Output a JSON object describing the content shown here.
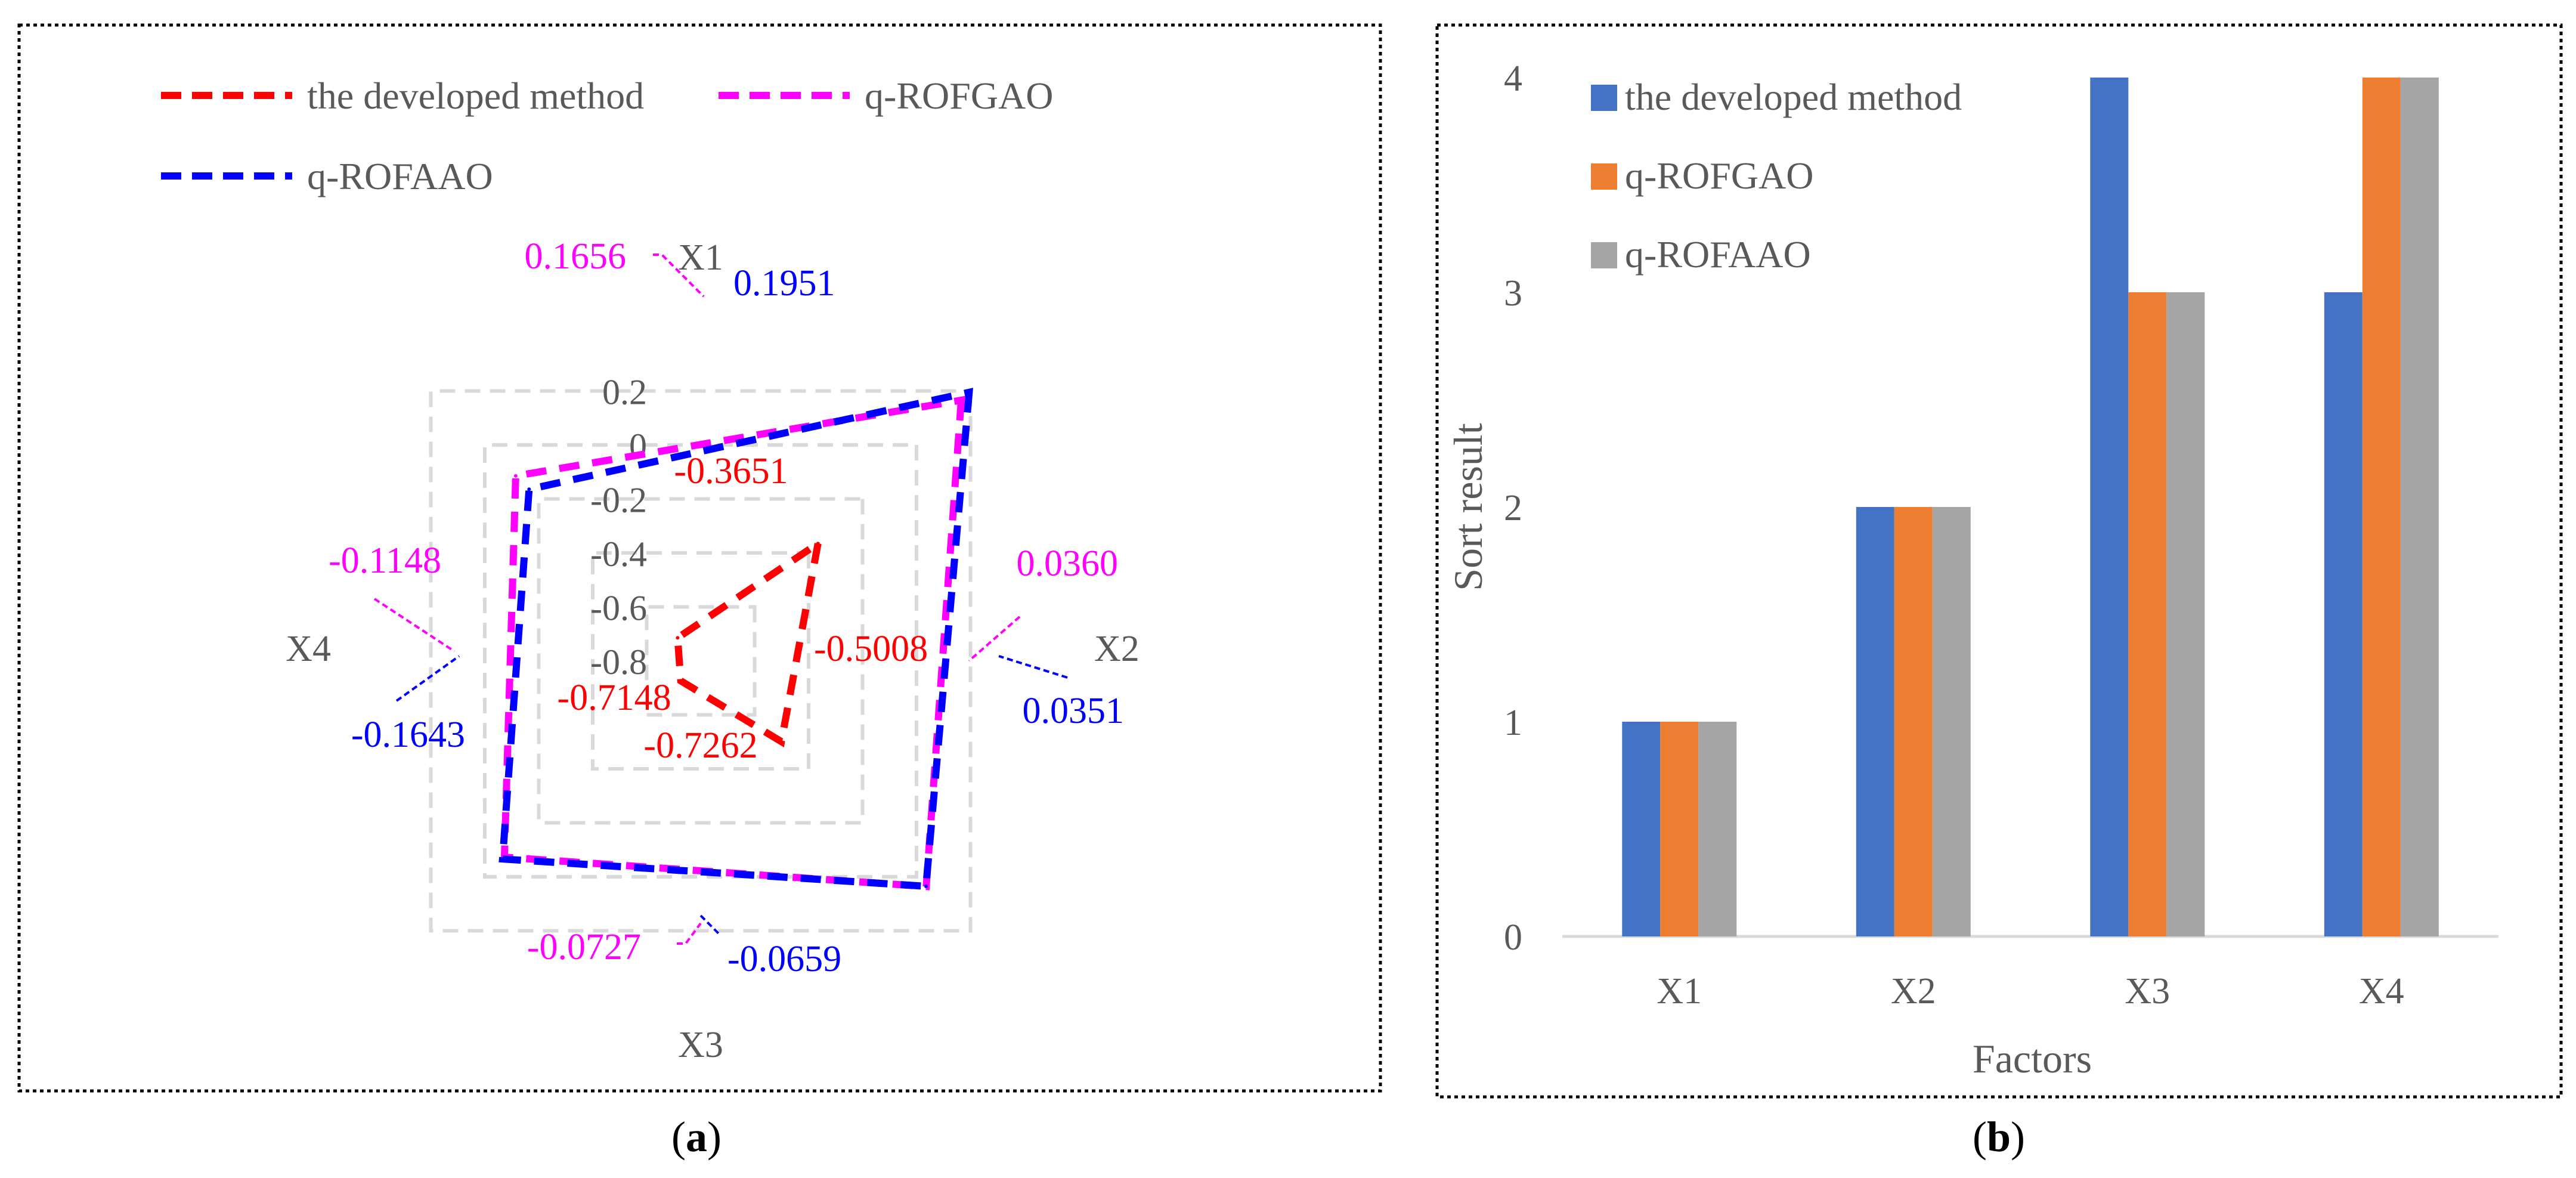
{
  "figure": {
    "panel_a_label": "a",
    "panel_b_label": "b"
  },
  "chart_data": [
    {
      "type": "radar",
      "panel": "a",
      "title": "",
      "axes": [
        "X1",
        "X2",
        "X3",
        "X4"
      ],
      "rlim": [
        -0.8,
        0.2
      ],
      "ticks": [
        -0.8,
        -0.6,
        -0.4,
        -0.2,
        0,
        0.2
      ],
      "tick_labels": [
        "-0.8",
        "-0.6",
        "-0.4",
        "-0.2",
        "0",
        "0.2"
      ],
      "legend_position": "top",
      "series": [
        {
          "name": "the developed method",
          "color": "#ff0000",
          "values": [
            -0.3651,
            -0.5008,
            -0.7262,
            -0.7148
          ],
          "labels": [
            "-0.3651",
            "-0.5008",
            "-0.7262",
            "-0.7148"
          ]
        },
        {
          "name": "q-ROFGAO",
          "color": "#ff00ff",
          "values": [
            0.1656,
            0.036,
            -0.0727,
            -0.1148
          ],
          "labels": [
            "0.1656",
            "0.0360",
            "-0.0727",
            "-0.1148"
          ]
        },
        {
          "name": "q-ROFAAO",
          "color": "#0000ff",
          "values": [
            0.1951,
            0.0351,
            -0.0659,
            -0.1643
          ],
          "labels": [
            "0.1951",
            "0.0351",
            "-0.0659",
            "-0.1643"
          ]
        }
      ]
    },
    {
      "type": "bar",
      "panel": "b",
      "title": "",
      "categories": [
        "X1",
        "X2",
        "X3",
        "X4"
      ],
      "xlabel": "Factors",
      "ylabel": "Sort result",
      "ylim": [
        0,
        4
      ],
      "yticks": [
        0,
        1,
        2,
        3,
        4
      ],
      "ytick_labels": [
        "0",
        "1",
        "2",
        "3",
        "4"
      ],
      "legend_position": "top-left",
      "series": [
        {
          "name": "the developed method",
          "color": "#4472c4",
          "values": [
            1,
            2,
            4,
            3
          ]
        },
        {
          "name": "q-ROFGAO",
          "color": "#ed7d31",
          "values": [
            1,
            2,
            3,
            4
          ]
        },
        {
          "name": "q-ROFAAO",
          "color": "#a5a5a5",
          "values": [
            1,
            2,
            3,
            4
          ]
        }
      ]
    }
  ]
}
